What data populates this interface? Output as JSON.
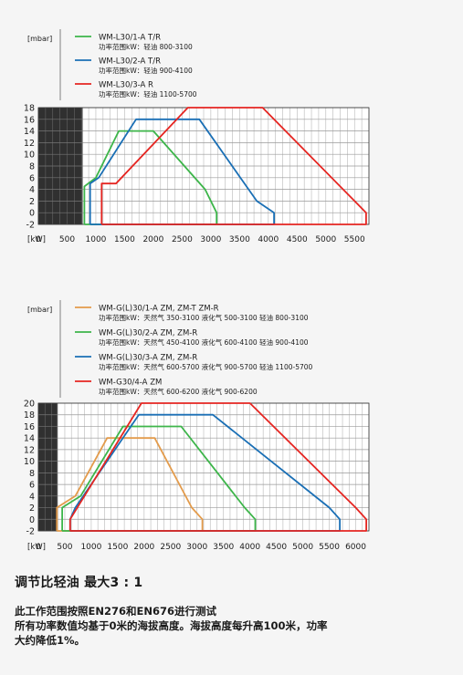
{
  "chart_data": [
    {
      "type": "line",
      "ylabel": "[mbar]",
      "xlabel": "[kW]",
      "xlim": [
        0,
        5750
      ],
      "ylim": [
        -2,
        18
      ],
      "x_ticks": [
        0,
        500,
        1000,
        1500,
        2000,
        2500,
        3000,
        3500,
        4000,
        4500,
        5000,
        5500
      ],
      "y_ticks": [
        -2,
        0,
        2,
        4,
        6,
        8,
        10,
        12,
        14,
        16,
        18
      ],
      "grid": true,
      "series": [
        {
          "name": "WM-L30/1-A T/R",
          "range_text": "功率范围kW：轻油 800-3100",
          "color": "#3db54a",
          "x": [
            800,
            800,
            1000,
            1400,
            2000,
            2900,
            3100,
            3100,
            800
          ],
          "y": [
            -2,
            4.5,
            6,
            14,
            14,
            4,
            0,
            -2,
            -2
          ]
        },
        {
          "name": "WM-L30/2-A T/R",
          "range_text": "功率范围kW：轻油 900-4100",
          "color": "#1a6fb5",
          "x": [
            900,
            900,
            1050,
            1700,
            2800,
            3800,
            4100,
            4100,
            900
          ],
          "y": [
            -2,
            5,
            6,
            16,
            16,
            2,
            0,
            -2,
            -2
          ]
        },
        {
          "name": "WM-L30/3-A R",
          "range_text": "功率范围kW：轻油 1100-5700",
          "color": "#e52521",
          "x": [
            1100,
            1100,
            1350,
            2600,
            3900,
            5500,
            5700,
            5700,
            1100
          ],
          "y": [
            -2,
            5,
            5,
            18,
            18,
            2,
            0,
            -2,
            -2
          ]
        }
      ]
    },
    {
      "type": "line",
      "ylabel": "[mbar]",
      "xlabel": "[kW]",
      "xlim": [
        0,
        6250
      ],
      "ylim": [
        -2,
        20
      ],
      "x_ticks": [
        0,
        500,
        1000,
        1500,
        2000,
        2500,
        3000,
        3500,
        4000,
        4500,
        5000,
        5500,
        6000
      ],
      "y_ticks": [
        -2,
        0,
        2,
        4,
        6,
        8,
        10,
        12,
        14,
        16,
        18,
        20
      ],
      "grid": true,
      "series": [
        {
          "name": "WM-G(L)30/1-A ZM, ZM-T ZM-R",
          "range_text": "功率范围kW：天然气 350-3100 液化气 500-3100 轻油 800-3100",
          "color": "#e39b4b",
          "x": [
            350,
            350,
            700,
            1300,
            2200,
            2900,
            3100,
            3100,
            350
          ],
          "y": [
            -2,
            2,
            4,
            14,
            14,
            2,
            0,
            -2,
            -2
          ]
        },
        {
          "name": "WM-G(L)30/2-A ZM, ZM-R",
          "range_text": "功率范围kW：天然气 450-4100 液化气 600-4100 轻油 900-4100",
          "color": "#3db54a",
          "x": [
            450,
            450,
            800,
            1600,
            2700,
            3900,
            4100,
            4100,
            450
          ],
          "y": [
            -2,
            2,
            4,
            16,
            16,
            2,
            0,
            -2,
            -2
          ]
        },
        {
          "name": "WM-G(L)30/3-A ZM, ZM-R",
          "range_text": "功率范围kW：天然气 600-5700 液化气 900-5700 轻油 1100-5700",
          "color": "#1a6fb5",
          "x": [
            600,
            600,
            700,
            1900,
            3300,
            5500,
            5700,
            5700,
            600
          ],
          "y": [
            -2,
            0,
            2,
            18,
            18,
            2,
            0,
            -2,
            -2
          ]
        },
        {
          "name": "WM-G30/4-A ZM",
          "range_text": "功率范围kW：天然气 600-6200 液化气 900-6200",
          "color": "#e52521",
          "x": [
            600,
            600,
            1950,
            4000,
            6000,
            6200,
            6200,
            600
          ],
          "y": [
            -2,
            0,
            20,
            20,
            2,
            0,
            -2,
            -2
          ]
        }
      ]
    }
  ],
  "footer": {
    "heading": "调节比轻油 最大3 : 1",
    "line1": "此工作范围按照EN276和EN676进行测试",
    "line2": "所有功率数值均基于0米的海拔高度。海拔高度每升高100米，功率",
    "line3": "大约降低1%。"
  }
}
